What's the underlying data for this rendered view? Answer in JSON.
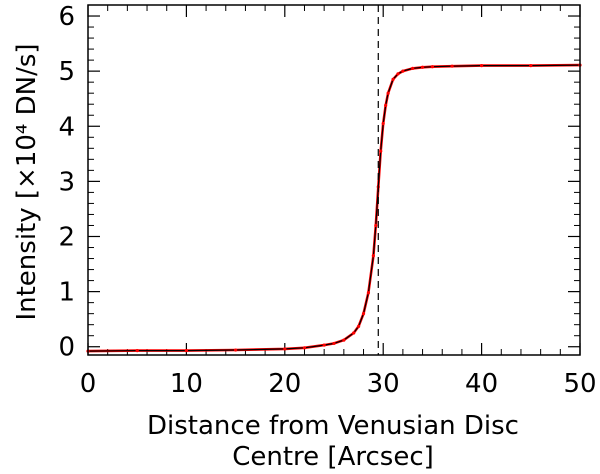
{
  "chart_data": {
    "type": "line",
    "title": "",
    "xlabel_line1": "Distance from Venusian Disc",
    "xlabel_line2": "Centre [Arcsec]",
    "ylabel": "Intensity [×10⁴ DN/s]",
    "xlim": [
      0,
      50
    ],
    "ylim": [
      -0.15,
      6.2
    ],
    "xticks": [
      0,
      10,
      20,
      30,
      40,
      50
    ],
    "yticks": [
      0,
      1,
      2,
      3,
      4,
      5,
      6
    ],
    "grid": false,
    "legend": "none",
    "vline_x": 29.5,
    "colors": {
      "data": "#ff0000",
      "fit": "#000000",
      "vline": "#000000"
    },
    "series": [
      {
        "x": [
          0,
          5,
          10,
          15,
          20,
          22,
          24,
          25,
          26,
          27,
          27.5,
          28,
          28.5,
          29,
          29.25,
          29.5,
          29.75,
          30,
          30.25,
          30.5,
          31,
          31.5,
          32,
          33,
          34,
          35,
          37,
          40,
          45,
          50
        ],
        "y": [
          -0.08,
          -0.07,
          -0.07,
          -0.06,
          -0.04,
          -0.02,
          0.03,
          0.06,
          0.12,
          0.25,
          0.37,
          0.6,
          0.98,
          1.65,
          2.2,
          2.9,
          3.55,
          4.05,
          4.38,
          4.6,
          4.85,
          4.95,
          5.0,
          5.05,
          5.07,
          5.08,
          5.09,
          5.1,
          5.1,
          5.11
        ]
      }
    ]
  }
}
